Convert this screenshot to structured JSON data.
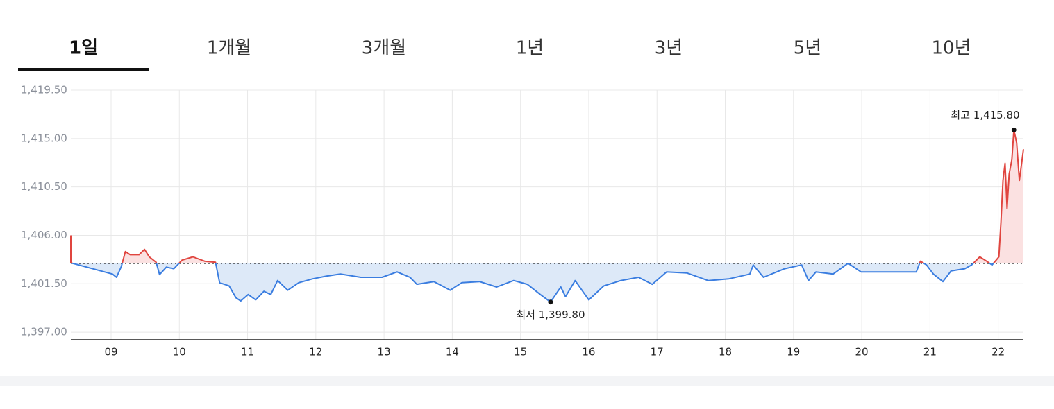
{
  "tabs": [
    "1일",
    "1개월",
    "3개월",
    "1년",
    "3년",
    "5년",
    "10년"
  ],
  "active_tab": 0,
  "chart_data": {
    "type": "line",
    "x": [
      8.41,
      8.41,
      9.02,
      9.08,
      9.15,
      9.21,
      9.28,
      9.41,
      9.49,
      9.56,
      9.66,
      9.71,
      9.81,
      9.92,
      10.04,
      10.2,
      10.37,
      10.53,
      10.59,
      10.73,
      10.83,
      10.9,
      11.01,
      11.12,
      11.24,
      11.34,
      11.44,
      11.59,
      11.75,
      11.95,
      12.15,
      12.36,
      12.66,
      12.97,
      13.19,
      13.38,
      13.48,
      13.73,
      13.97,
      14.14,
      14.4,
      14.65,
      14.9,
      15.1,
      15.29,
      15.44,
      15.59,
      15.66,
      15.8,
      16.0,
      16.22,
      16.47,
      16.73,
      16.93,
      17.14,
      17.44,
      17.75,
      18.05,
      18.36,
      18.41,
      18.56,
      18.87,
      19.12,
      19.22,
      19.33,
      19.58,
      19.8,
      19.99,
      20.4,
      20.8,
      20.86,
      20.95,
      21.05,
      21.19,
      21.31,
      21.51,
      21.61,
      21.73,
      21.83,
      21.91,
      22.01,
      22.04,
      22.07,
      22.1,
      22.13,
      22.16,
      22.2,
      22.23,
      22.27,
      22.31,
      22.37
    ],
    "series": [
      {
        "name": "price",
        "color": "#3a7de0",
        "values": [
          1406.0,
          1403.45,
          1402.4,
          1402.1,
          1403.1,
          1404.5,
          1404.2,
          1404.2,
          1404.7,
          1404.0,
          1403.5,
          1402.35,
          1403.05,
          1402.9,
          1403.7,
          1404.0,
          1403.6,
          1403.5,
          1401.6,
          1401.3,
          1400.2,
          1399.9,
          1400.5,
          1400.0,
          1400.8,
          1400.5,
          1401.8,
          1400.9,
          1401.6,
          1401.95,
          1402.2,
          1402.4,
          1402.1,
          1402.1,
          1402.6,
          1402.1,
          1401.45,
          1401.7,
          1400.9,
          1401.6,
          1401.7,
          1401.2,
          1401.8,
          1401.45,
          1400.5,
          1399.8,
          1401.2,
          1400.3,
          1401.8,
          1400.0,
          1401.3,
          1401.8,
          1402.1,
          1401.45,
          1402.6,
          1402.5,
          1401.8,
          1401.95,
          1402.4,
          1403.25,
          1402.1,
          1402.9,
          1403.25,
          1401.8,
          1402.6,
          1402.4,
          1403.4,
          1402.6,
          1402.6,
          1402.6,
          1403.6,
          1403.25,
          1402.4,
          1401.7,
          1402.7,
          1402.9,
          1403.25,
          1404.0,
          1403.6,
          1403.25,
          1404.0,
          1407.25,
          1411.1,
          1412.7,
          1408.5,
          1411.7,
          1413.05,
          1415.8,
          1414.6,
          1411.1,
          1414.0
        ]
      }
    ],
    "up_color": "#e0453f",
    "up_fill": "#fbe1e1",
    "down_fill": "#dde9f8",
    "baseline": 1403.4,
    "xlim": [
      8.41,
      22.37
    ],
    "ylim": [
      1396.3,
      1419.5
    ],
    "xticks": [
      {
        "value": 9,
        "label": "09"
      },
      10,
      11,
      12,
      13,
      14,
      15,
      16,
      17,
      18,
      19,
      20,
      21,
      22
    ],
    "yticks": [
      {
        "value": 1397,
        "label": "1,397.00"
      },
      {
        "value": 1401.5,
        "label": "1,401.50"
      },
      {
        "value": 1406,
        "label": "1,406.00"
      },
      {
        "value": 1410.5,
        "label": "1,410.50"
      },
      {
        "value": 1415,
        "label": "1,415.00"
      },
      {
        "value": 1419.5,
        "label": "1,419.50"
      }
    ],
    "grid": true,
    "annotations": [
      {
        "label": "최고 1,415.80",
        "x": 22.23,
        "y": 1415.8,
        "position": "above"
      },
      {
        "label": "최저 1,399.80",
        "x": 15.44,
        "y": 1399.8,
        "position": "below"
      }
    ]
  }
}
